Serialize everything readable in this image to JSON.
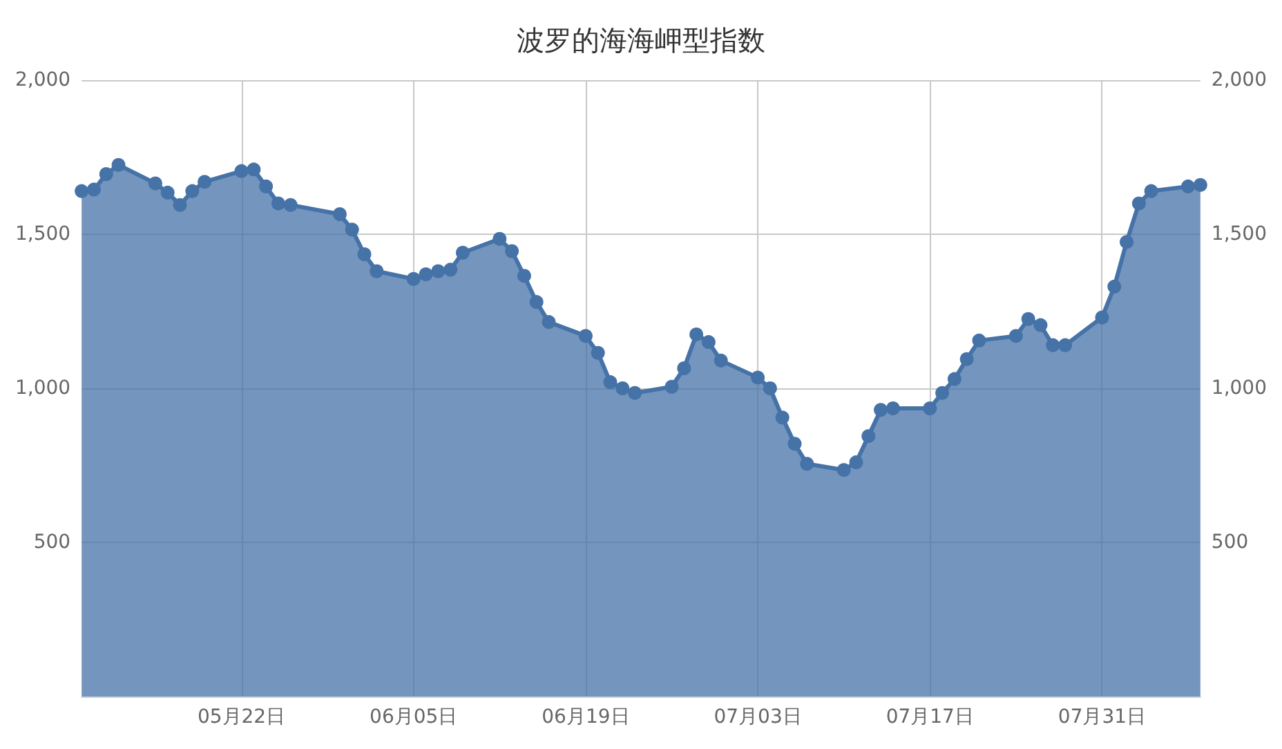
{
  "chart_data": {
    "type": "area",
    "title": "波罗的海海岬型指数",
    "x": [
      "--05-09",
      "--05-10",
      "--05-11",
      "--05-12",
      "--05-15",
      "--05-16",
      "--05-17",
      "--05-18",
      "--05-19",
      "--05-22",
      "--05-23",
      "--05-24",
      "--05-25",
      "--05-26",
      "--05-30",
      "--05-31",
      "--06-01",
      "--06-02",
      "--06-05",
      "--06-06",
      "--06-07",
      "--06-08",
      "--06-09",
      "--06-12",
      "--06-13",
      "--06-14",
      "--06-15",
      "--06-16",
      "--06-19",
      "--06-20",
      "--06-21",
      "--06-22",
      "--06-23",
      "--06-26",
      "--06-27",
      "--06-28",
      "--06-29",
      "--06-30",
      "--07-03",
      "--07-04",
      "--07-05",
      "--07-06",
      "--07-07",
      "--07-10",
      "--07-11",
      "--07-12",
      "--07-13",
      "--07-14",
      "--07-17",
      "--07-18",
      "--07-19",
      "--07-20",
      "--07-21",
      "--07-24",
      "--07-25",
      "--07-26",
      "--07-27",
      "--07-28",
      "--07-31",
      "--08-01",
      "--08-02",
      "--08-03",
      "--08-04",
      "--08-07",
      "--08-08"
    ],
    "series": [
      {
        "color": "#4572a7",
        "values": [
          1640,
          1645,
          1695,
          1725,
          1665,
          1635,
          1595,
          1640,
          1670,
          1705,
          1710,
          1655,
          1600,
          1595,
          1565,
          1515,
          1435,
          1380,
          1355,
          1370,
          1380,
          1385,
          1440,
          1485,
          1445,
          1365,
          1280,
          1215,
          1170,
          1115,
          1020,
          1000,
          985,
          1005,
          1065,
          1175,
          1150,
          1090,
          1035,
          1000,
          905,
          820,
          755,
          735,
          760,
          845,
          930,
          935,
          935,
          985,
          1030,
          1095,
          1155,
          1170,
          1225,
          1205,
          1140,
          1140,
          1230,
          1330,
          1475,
          1600,
          1640,
          1655,
          1660
        ]
      }
    ],
    "xlim": [
      "--05-09",
      "--08-08"
    ],
    "xticks": [
      {
        "value": "--05-22",
        "label": "05月22日"
      },
      {
        "value": "--06-05",
        "label": "06月05日"
      },
      {
        "value": "--06-19",
        "label": "06月19日"
      },
      {
        "value": "--07-03",
        "label": "07月03日"
      },
      {
        "value": "--07-17",
        "label": "07月17日"
      },
      {
        "value": "--07-31",
        "label": "07月31日"
      }
    ],
    "ylim": [
      0,
      2000
    ],
    "yticks": [
      500,
      {
        "value": 1000,
        "label": "1,000"
      },
      {
        "value": 1500,
        "label": "1,500"
      },
      {
        "value": 2000,
        "label": "2,000"
      }
    ],
    "y2lim": [
      0,
      2000
    ],
    "y2ticks": [
      500,
      {
        "value": 1000,
        "label": "1,000"
      },
      {
        "value": 1500,
        "label": "1,500"
      },
      {
        "value": 2000,
        "label": "2,000"
      }
    ],
    "grid": true,
    "marker": "circle"
  }
}
